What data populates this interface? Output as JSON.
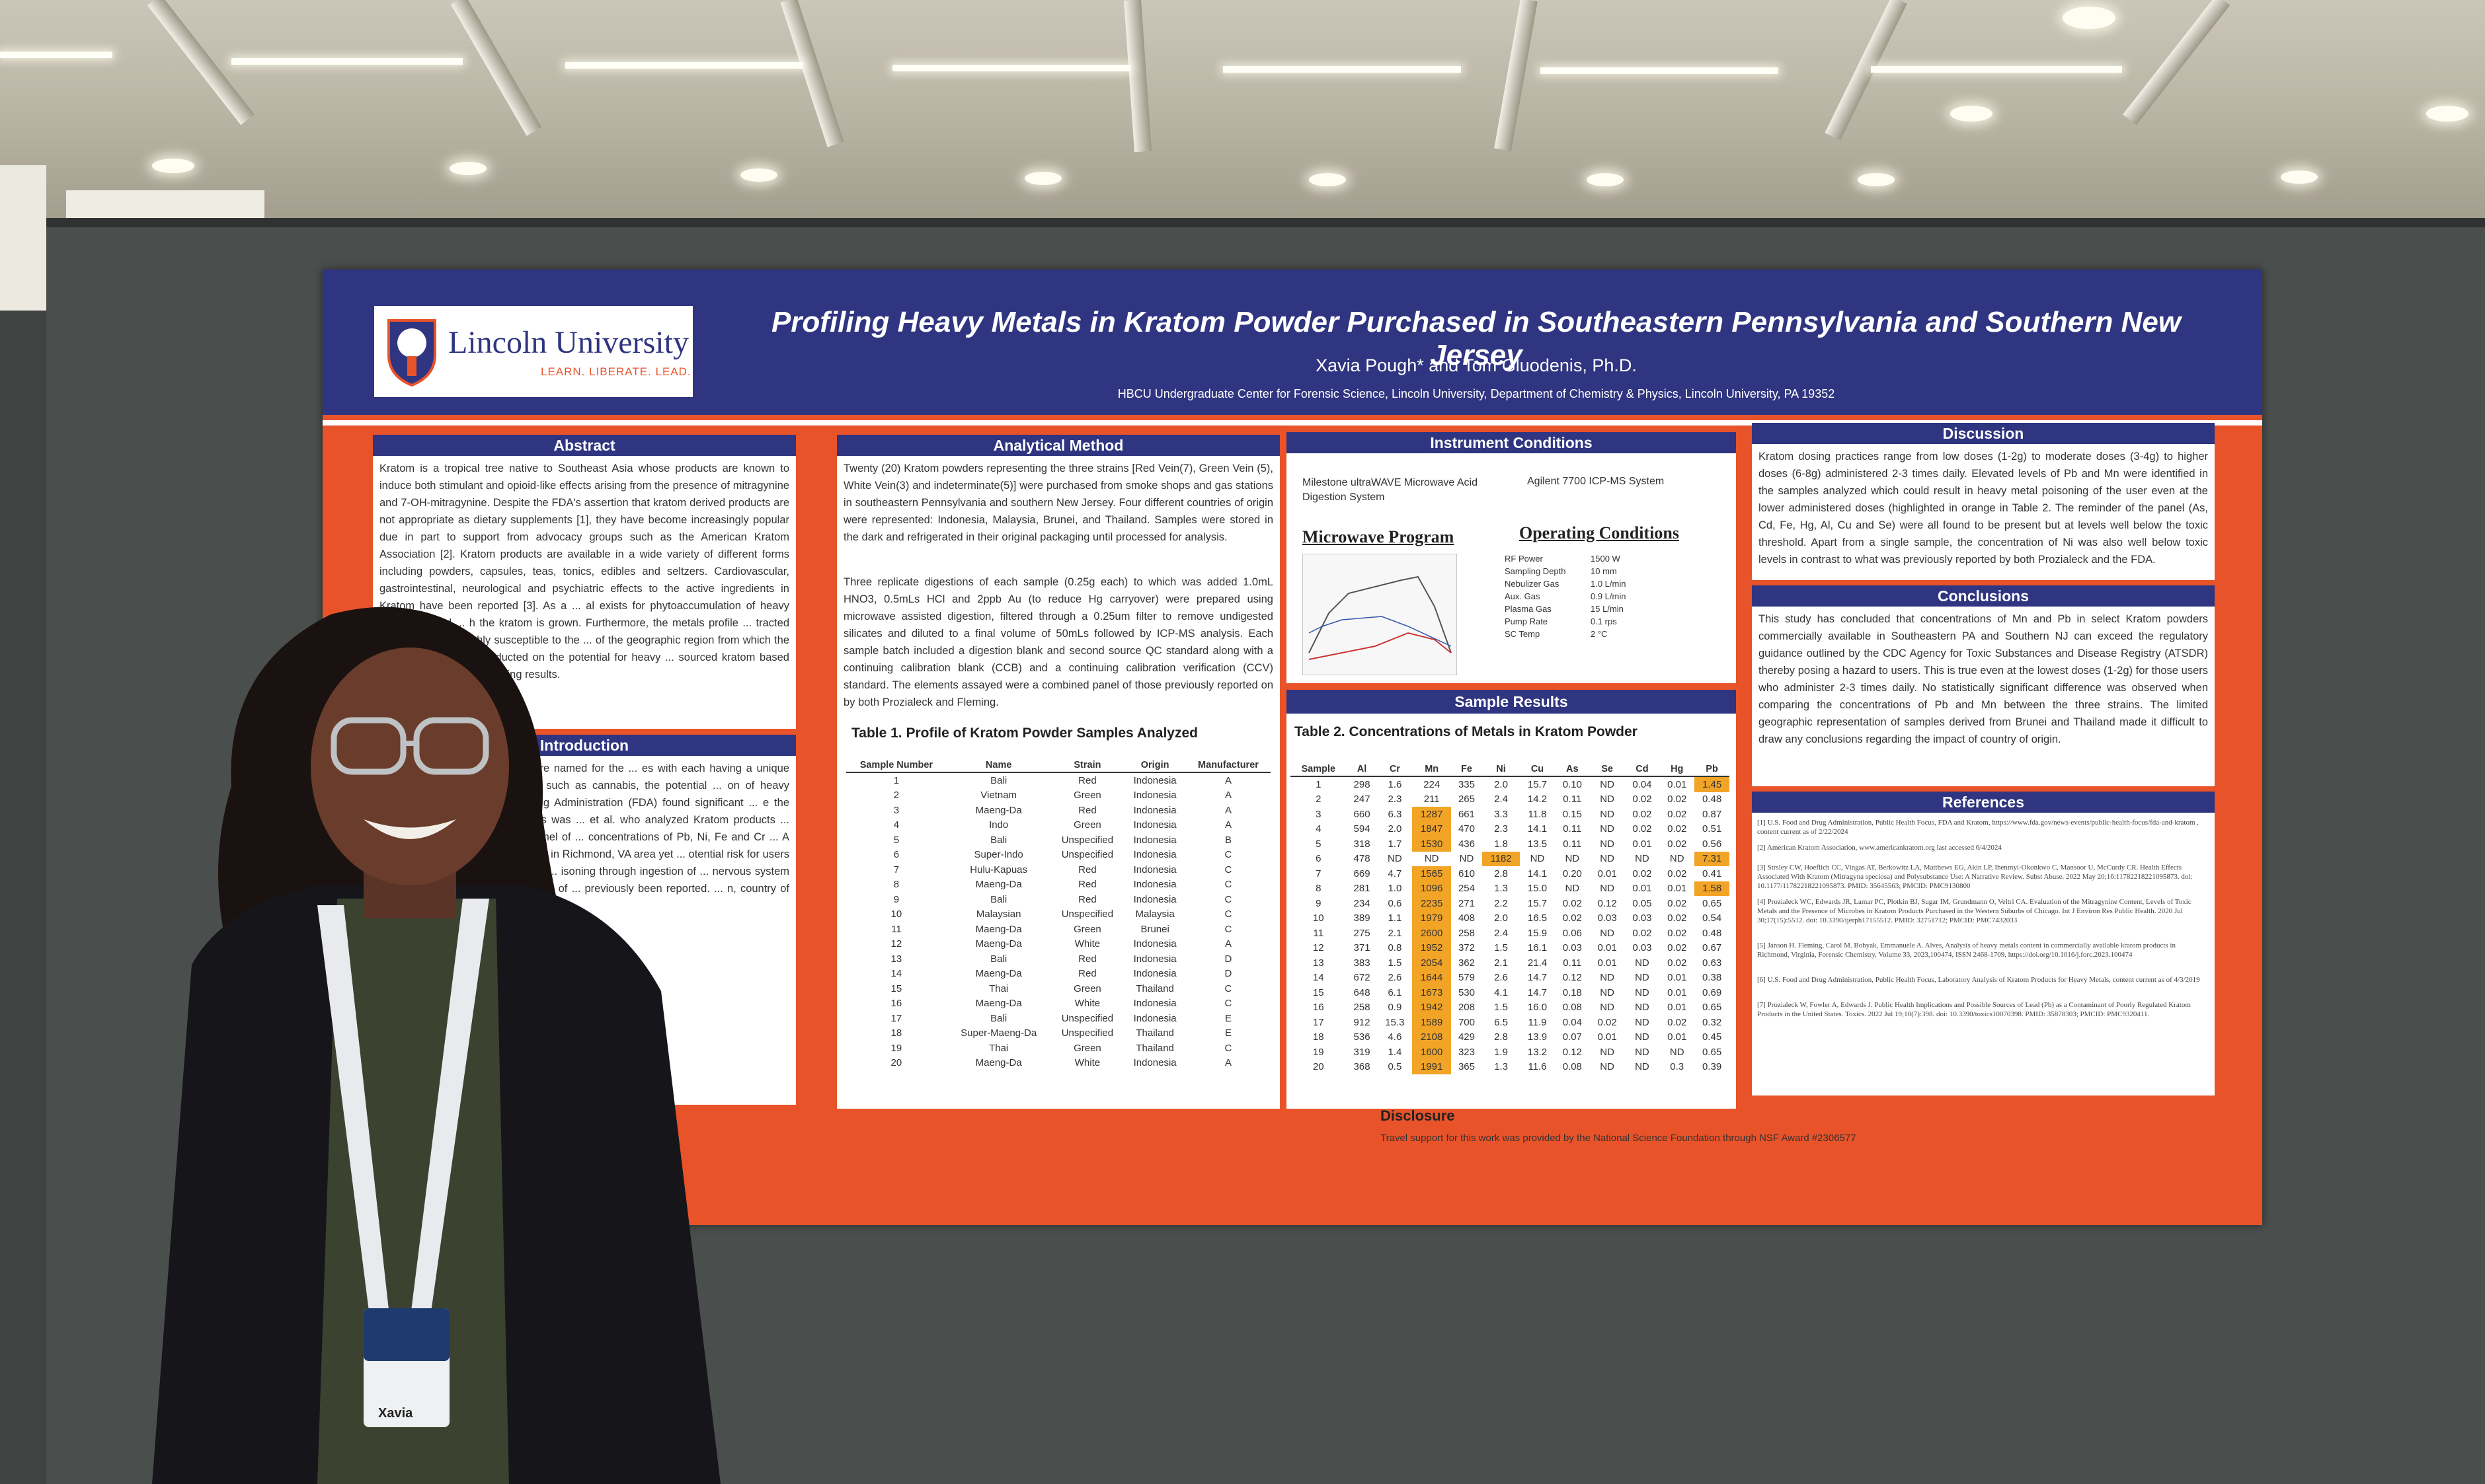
{
  "poster": {
    "logo_name": "Lincoln University",
    "logo_tagline": "LEARN. LIBERATE. LEAD.",
    "title": "Profiling Heavy Metals in Kratom Powder Purchased in Southeastern Pennsylvania and Southern New Jersey",
    "authors": "Xavia Pough* and Tom Gluodenis, Ph.D.",
    "affiliation": "HBCU Undergraduate Center for Forensic Science, Lincoln University, Department of Chemistry & Physics, Lincoln University, PA 19352",
    "sections": {
      "abstract": {
        "heading": "Abstract",
        "text": "Kratom is a tropical tree native to Southeast Asia whose products are known to induce both stimulant and opioid-like effects arising from the presence of mitragynine and 7-OH-mitragynine. Despite the FDA's assertion that kratom derived products are not appropriate as dietary supplements [1], they have become increasingly popular due in part to support from advocacy groups such as the American Kratom Association [2]. Kratom products are available in a wide variety of different forms including powders, capsules, teas, tonics, edibles and seltzers. Cardiovascular, gastrointestinal, neurological and psychiatric effects to the active ingredients in Kratom have been reported [3]. As a ... al exists for phytoaccumulation of heavy metals derived ... h the kratom is grown. Furthermore, the metals profile ... tracted from the soil are highly susceptible to the ... of the geographic region from which the plant ... have been conducted on the potential for heavy ... sourced kratom based products[4 - 6] with ... varying results."
      },
      "introduction": {
        "heading": "Introduction",
        "text": "... m (Red, Green, and White) are named for the ... es with each having a unique profile of effects. ... substances such as cannabis, the potential ... on of heavy metals. In a 2019 report, ... Drug Administration (FDA) found significant ... e the Kratom products studied [6]. This was ... et al. who analyzed Kratom products ... urbs of Chicago for a broader panel of ... concentrations of Pb, Ni, Fe and Cr ... A follow-up study by Fleming et al. ... in Richmond, VA area yet ... otential risk for users [5]. ... e growing body of literature ... isoning through ingestion of ... nervous system or kidney ... cancers[7]. The results of ... previously been reported. ... n, country of origin, and"
      },
      "analytical_method": {
        "heading": "Analytical Method",
        "text1": "Twenty (20) Kratom powders representing the three strains [Red Vein(7), Green Vein (5), White Vein(3) and indeterminate(5)] were purchased from smoke shops and gas stations in southeastern Pennsylvania and southern New Jersey. Four different countries of origin were represented: Indonesia, Malaysia, Brunei, and Thailand. Samples were stored in the dark and refrigerated in their original packaging until processed for analysis.",
        "text2": "Three replicate digestions of each sample (0.25g each) to which was added 1.0mL HNO3, 0.5mLs HCl and 2ppb Au (to reduce Hg carryover) were prepared using microwave assisted digestion, filtered through a 0.25um filter to remove undigested silicates and diluted to a final volume of 50mLs followed by ICP-MS analysis. Each sample batch included a digestion blank and second source QC standard along with a continuing calibration blank (CCB) and a continuing calibration verification (CCV) standard. The elements assayed were a combined panel of those previously reported on by both Prozialeck and Fleming."
      },
      "instrument_conditions": {
        "heading": "Instrument Conditions",
        "digestion": "Milestone ultraWAVE Microwave Acid Digestion System",
        "icpms": "Agilent 7700 ICP-MS System",
        "microwave_program": "Microwave Program",
        "operating_conditions": "Operating Conditions",
        "op_params": [
          {
            "k": "RF Power",
            "v": "1500 W"
          },
          {
            "k": "Sampling Depth",
            "v": "10 mm"
          },
          {
            "k": "Nebulizer Gas",
            "v": "1.0 L/min"
          },
          {
            "k": "Aux. Gas",
            "v": "0.9 L/min"
          },
          {
            "k": "Plasma Gas",
            "v": "15 L/min"
          },
          {
            "k": "Pump Rate",
            "v": "0.1 rps"
          },
          {
            "k": "SC Temp",
            "v": "2 °C"
          }
        ]
      },
      "sample_results": {
        "heading": "Sample Results"
      },
      "discussion": {
        "heading": "Discussion",
        "text": "Kratom dosing practices range from low doses (1-2g) to moderate doses (3-4g) to higher doses (6-8g) administered 2-3 times daily. Elevated levels of Pb and Mn were identified in the samples analyzed which could result in heavy metal poisoning of the user even at the lower administered doses (highlighted in orange in Table 2. The reminder of the panel (As, Cd, Fe, Hg, Al, Cu and Se) were all found to be present but at levels well below the toxic threshold. Apart from a single sample, the concentration of Ni was also well below toxic levels in contrast to what was previously reported by both Prozialeck and the FDA."
      },
      "conclusions": {
        "heading": "Conclusions",
        "text": "This study has concluded that concentrations of Mn and Pb in select Kratom powders commercially available in Southeastern PA and Southern NJ can exceed the regulatory guidance outlined by the CDC Agency for Toxic Substances and Disease Registry (ATSDR) thereby posing a hazard to users. This is true even at the lowest doses (1-2g) for those users who administer 2-3 times daily. No statistically significant difference was observed when comparing the concentrations of Pb and Mn between the three strains. The limited geographic representation of samples derived from Brunei and Thailand made it difficult to draw any conclusions regarding the impact of country of origin."
      },
      "references": {
        "heading": "References",
        "items": [
          "[1] U.S. Food and Drug Administration, Public Health Focus, FDA and Kratom, https://www.fda.gov/news-events/public-health-focus/fda-and-kratom , content current as of 2/22/2024",
          "[2] American Kratom Association, www.americankratom.org last accessed 6/4/2024",
          "[3] Strsley CW, Hoeflich CC, Vingas AT, Berkowitz LA, Matthews EG, Akin LP, Ihenmyi-Okonkwo C, Mansoor U, McCurdy CR. Health Effects Associated With Kratom (Mitragyna speciosa) and Polysubstance Use: A Narrative Review. Subst Abuse. 2022 May 20;16:11782218221095873. doi: 10.1177/11782218221095873. PMID: 35645563; PMCID: PMC9130800",
          "[4] Prozialeck WC, Edwards JR, Lamar PC, Plotkin BJ, Sugar IM, Grundmann O, Veltri CA. Evaluation of the Mitragynine Content, Levels of Toxic Metals and the Presence of Microbes in Kratom Products Purchased in the Western Suburbs of Chicago. Int J Environ Res Public Health. 2020 Jul 30;17(15):5512. doi: 10.3390/ijerph17155512. PMID: 32751712; PMCID: PMC7432033",
          "[5] Janson H. Fleming, Carol M. Bobyak, Emmanuele A. Alves, Analysis of heavy metals content in commercially available kratom products in Richmond, Virginia, Forensic Chemistry, Volume 33, 2023,100474, ISSN 2468-1709, https://doi.org/10.1016/j.forc.2023.100474",
          "[6] U.S. Food and Drug Administration, Public Health Focus, Laboratory Analysis of Kratom Products for Heavy Metals, content current as of 4/3/2019",
          "[7] Prozialeck W, Fowler A, Edwards J. Public Health Implications and Possible Sources of Lead (Pb) as a Contaminant of Poorly Regulated Kratom Products in the United States. Toxics. 2022 Jul 19;10(7):398. doi: 10.3390/toxics10070398. PMID: 35878303; PMCID: PMC9320411."
        ]
      },
      "disclosure": {
        "heading": "Disclosure",
        "text": "Travel support for this work was provided by the National Science Foundation through NSF Award #2306577"
      }
    },
    "table1": {
      "caption": "Table 1.  Profile of Kratom Powder Samples Analyzed",
      "headers": [
        "Sample Number",
        "Name",
        "Strain",
        "Origin",
        "Manufacturer"
      ],
      "rows": [
        [
          "1",
          "Bali",
          "Red",
          "Indonesia",
          "A"
        ],
        [
          "2",
          "Vietnam",
          "Green",
          "Indonesia",
          "A"
        ],
        [
          "3",
          "Maeng-Da",
          "Red",
          "Indonesia",
          "A"
        ],
        [
          "4",
          "Indo",
          "Green",
          "Indonesia",
          "A"
        ],
        [
          "5",
          "Bali",
          "Unspecified",
          "Indonesia",
          "B"
        ],
        [
          "6",
          "Super-Indo",
          "Unspecified",
          "Indonesia",
          "C"
        ],
        [
          "7",
          "Hulu-Kapuas",
          "Red",
          "Indonesia",
          "C"
        ],
        [
          "8",
          "Maeng-Da",
          "Red",
          "Indonesia",
          "C"
        ],
        [
          "9",
          "Bali",
          "Red",
          "Indonesia",
          "C"
        ],
        [
          "10",
          "Malaysian",
          "Unspecified",
          "Malaysia",
          "C"
        ],
        [
          "11",
          "Maeng-Da",
          "Green",
          "Brunei",
          "C"
        ],
        [
          "12",
          "Maeng-Da",
          "White",
          "Indonesia",
          "A"
        ],
        [
          "13",
          "Bali",
          "Red",
          "Indonesia",
          "D"
        ],
        [
          "14",
          "Maeng-Da",
          "Red",
          "Indonesia",
          "D"
        ],
        [
          "15",
          "Thai",
          "Green",
          "Thailand",
          "C"
        ],
        [
          "16",
          "Maeng-Da",
          "White",
          "Indonesia",
          "C"
        ],
        [
          "17",
          "Bali",
          "Unspecified",
          "Indonesia",
          "E"
        ],
        [
          "18",
          "Super-Maeng-Da",
          "Unspecified",
          "Thailand",
          "E"
        ],
        [
          "19",
          "Thai",
          "Green",
          "Thailand",
          "C"
        ],
        [
          "20",
          "Maeng-Da",
          "White",
          "Indonesia",
          "A"
        ]
      ]
    },
    "table2": {
      "caption": "Table 2.  Concentrations of Metals  in Kratom Powder",
      "headers": [
        "Sample",
        "Al",
        "Cr",
        "Mn",
        "Fe",
        "Ni",
        "Cu",
        "As",
        "Se",
        "Cd",
        "Hg",
        "Pb"
      ],
      "highlight_color": "#f2a427",
      "rows": [
        [
          "1",
          "298",
          "1.6",
          "224",
          "335",
          "2.0",
          "15.7",
          "0.10",
          "ND",
          "0.04",
          "0.01",
          "1.45"
        ],
        [
          "2",
          "247",
          "2.3",
          "211",
          "265",
          "2.4",
          "14.2",
          "0.11",
          "ND",
          "0.02",
          "0.02",
          "0.48"
        ],
        [
          "3",
          "660",
          "6.3",
          "1287",
          "661",
          "3.3",
          "11.8",
          "0.15",
          "ND",
          "0.02",
          "0.02",
          "0.87"
        ],
        [
          "4",
          "594",
          "2.0",
          "1847",
          "470",
          "2.3",
          "14.1",
          "0.11",
          "ND",
          "0.02",
          "0.02",
          "0.51"
        ],
        [
          "5",
          "318",
          "1.7",
          "1530",
          "436",
          "1.8",
          "13.5",
          "0.11",
          "ND",
          "0.01",
          "0.02",
          "0.56"
        ],
        [
          "6",
          "478",
          "ND",
          "ND",
          "ND",
          "1182",
          "ND",
          "ND",
          "ND",
          "ND",
          "ND",
          "7.31"
        ],
        [
          "7",
          "669",
          "4.7",
          "1565",
          "610",
          "2.8",
          "14.1",
          "0.20",
          "0.01",
          "0.02",
          "0.02",
          "0.41"
        ],
        [
          "8",
          "281",
          "1.0",
          "1096",
          "254",
          "1.3",
          "15.0",
          "ND",
          "ND",
          "0.01",
          "0.01",
          "1.58"
        ],
        [
          "9",
          "234",
          "0.6",
          "2235",
          "271",
          "2.2",
          "15.7",
          "0.02",
          "0.12",
          "0.05",
          "0.02",
          "0.65"
        ],
        [
          "10",
          "389",
          "1.1",
          "1979",
          "408",
          "2.0",
          "16.5",
          "0.02",
          "0.03",
          "0.03",
          "0.02",
          "0.54"
        ],
        [
          "11",
          "275",
          "2.1",
          "2600",
          "258",
          "2.4",
          "15.9",
          "0.06",
          "ND",
          "0.02",
          "0.02",
          "0.48"
        ],
        [
          "12",
          "371",
          "0.8",
          "1952",
          "372",
          "1.5",
          "16.1",
          "0.03",
          "0.01",
          "0.03",
          "0.02",
          "0.67"
        ],
        [
          "13",
          "383",
          "1.5",
          "2054",
          "362",
          "2.1",
          "21.4",
          "0.11",
          "0.01",
          "ND",
          "0.02",
          "0.63"
        ],
        [
          "14",
          "672",
          "2.6",
          "1644",
          "579",
          "2.6",
          "14.7",
          "0.12",
          "ND",
          "ND",
          "0.01",
          "0.38"
        ],
        [
          "15",
          "648",
          "6.1",
          "1673",
          "530",
          "4.1",
          "14.7",
          "0.18",
          "ND",
          "ND",
          "0.01",
          "0.69"
        ],
        [
          "16",
          "258",
          "0.9",
          "1942",
          "208",
          "1.5",
          "16.0",
          "0.08",
          "ND",
          "ND",
          "0.01",
          "0.65"
        ],
        [
          "17",
          "912",
          "15.3",
          "1589",
          "700",
          "6.5",
          "11.9",
          "0.04",
          "0.02",
          "ND",
          "0.02",
          "0.32"
        ],
        [
          "18",
          "536",
          "4.6",
          "2108",
          "429",
          "2.8",
          "13.9",
          "0.07",
          "0.01",
          "ND",
          "0.01",
          "0.45"
        ],
        [
          "19",
          "319",
          "1.4",
          "1600",
          "323",
          "1.9",
          "13.2",
          "0.12",
          "ND",
          "ND",
          "ND",
          "0.65"
        ],
        [
          "20",
          "368",
          "0.5",
          "1991",
          "365",
          "1.3",
          "11.6",
          "0.08",
          "ND",
          "ND",
          "0.3",
          "0.39"
        ]
      ],
      "highlighted": {
        "Mn": [
          "3",
          "4",
          "5",
          "7",
          "8",
          "9",
          "10",
          "11",
          "12",
          "13",
          "14",
          "15",
          "16",
          "17",
          "18",
          "19",
          "20"
        ],
        "Ni": [
          "6"
        ],
        "Pb": [
          "1",
          "6",
          "8"
        ]
      }
    }
  },
  "badge": {
    "name": "Xavia"
  }
}
